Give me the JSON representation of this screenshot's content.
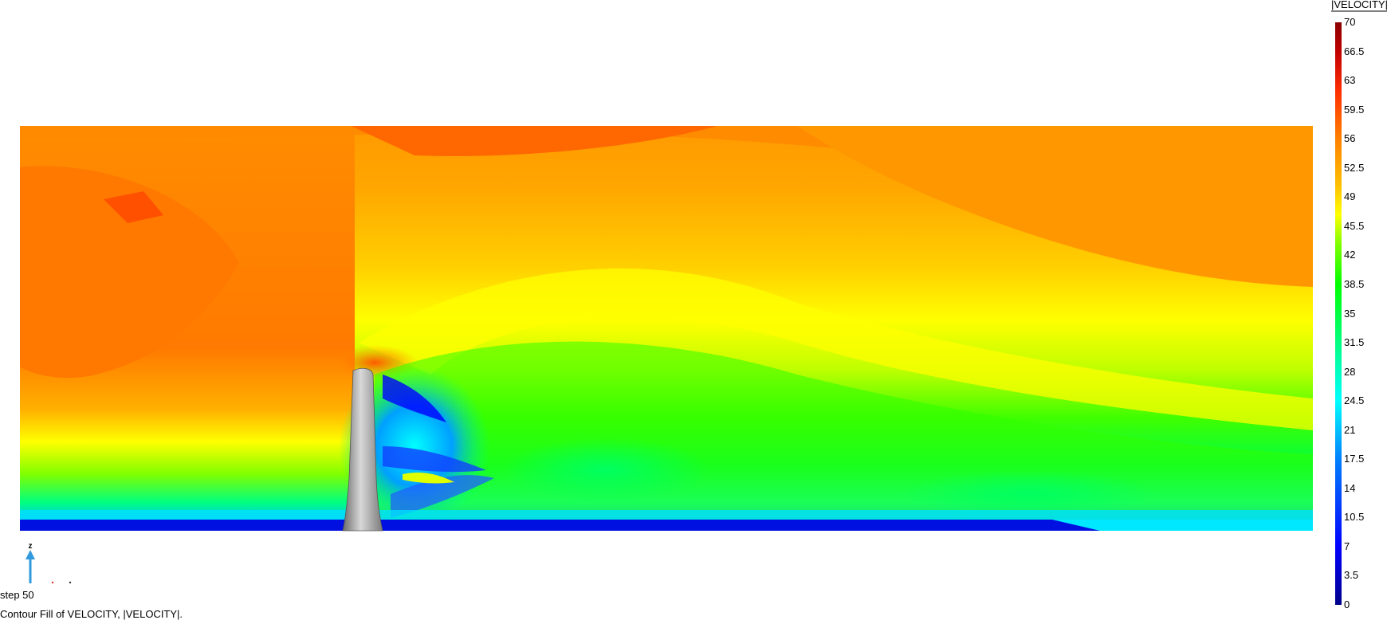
{
  "chart_data": {
    "type": "heatmap",
    "legend": {
      "title": "|VELOCITY|",
      "ticks": [
        "70",
        "66.5",
        "63",
        "59.5",
        "56",
        "52.5",
        "49",
        "45.5",
        "42",
        "38.5",
        "35",
        "31.5",
        "28",
        "24.5",
        "21",
        "17.5",
        "14",
        "10.5",
        "7",
        "3.5",
        "0"
      ],
      "range": [
        0,
        70
      ],
      "colormap": [
        "#00008b",
        "#0000ff",
        "#0080ff",
        "#00ffff",
        "#00ff80",
        "#00ff00",
        "#80ff00",
        "#ffff00",
        "#ffc000",
        "#ff8000",
        "#ff4000",
        "#c00000",
        "#8b0000"
      ]
    },
    "labels": {
      "step": "step 50",
      "caption": "Contour Fill of VELOCITY, |VELOCITY|.",
      "axis": "z"
    },
    "colors": {
      "axis_arrow": "#3399dd",
      "tower_body": "#a8a8a8"
    }
  }
}
